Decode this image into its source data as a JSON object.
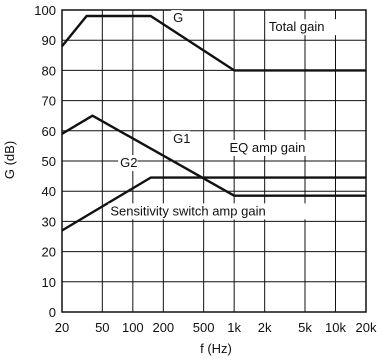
{
  "chart_data": {
    "type": "line",
    "xscale": "log",
    "xlabel": "f (Hz)",
    "ylabel": "G (dB)",
    "xlim": [
      20,
      20000
    ],
    "ylim": [
      0,
      100
    ],
    "xticks": [
      {
        "value": 20,
        "label": "20"
      },
      {
        "value": 50,
        "label": "50"
      },
      {
        "value": 100,
        "label": "100"
      },
      {
        "value": 200,
        "label": "200"
      },
      {
        "value": 500,
        "label": "500"
      },
      {
        "value": 1000,
        "label": "1k"
      },
      {
        "value": 2000,
        "label": "2k"
      },
      {
        "value": 5000,
        "label": "5k"
      },
      {
        "value": 10000,
        "label": "10k"
      },
      {
        "value": 20000,
        "label": "20k"
      }
    ],
    "yticks": [
      0,
      10,
      20,
      30,
      40,
      50,
      60,
      70,
      80,
      90,
      100
    ],
    "grid": true,
    "series": [
      {
        "name": "Total gain",
        "x": [
          20,
          35,
          150,
          1000,
          20000
        ],
        "y": [
          88,
          98,
          98,
          80,
          80
        ]
      },
      {
        "name": "EQ amp gain",
        "x": [
          20,
          40,
          1000,
          20000
        ],
        "y": [
          59,
          65,
          38.5,
          38.5
        ]
      },
      {
        "name": "Sensitivity switch amp gain",
        "x": [
          20,
          150,
          20000
        ],
        "y": [
          27,
          44.5,
          44.5
        ]
      }
    ],
    "annotations": [
      {
        "text": "G",
        "x": 250,
        "y": 96
      },
      {
        "text": "Total gain",
        "x": 2200,
        "y": 93
      },
      {
        "text": "G1",
        "x": 250,
        "y": 56
      },
      {
        "text": "EQ amp gain",
        "x": 900,
        "y": 53
      },
      {
        "text": "G2",
        "x": 75,
        "y": 48
      },
      {
        "text": "Sensitivity switch amp gain",
        "x": 60,
        "y": 32
      }
    ]
  }
}
